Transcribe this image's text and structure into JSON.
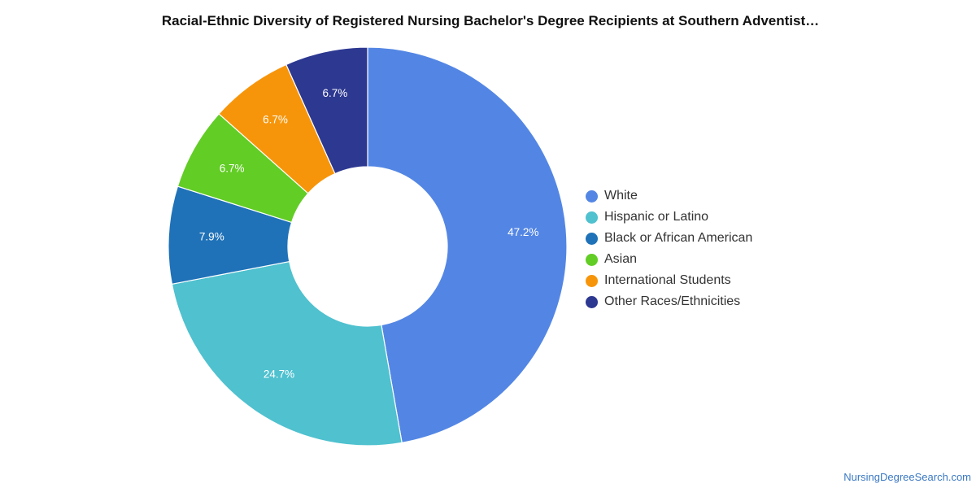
{
  "chart_data": {
    "type": "pie",
    "donut": true,
    "title": "Racial-Ethnic Diversity of Registered Nursing Bachelor's Degree Recipients at Southern Adventist…",
    "legend_position": "right",
    "slices": [
      {
        "label": "White",
        "value": 47.2,
        "display": "47.2%",
        "color": "#5386e4"
      },
      {
        "label": "Hispanic or Latino",
        "value": 24.7,
        "display": "24.7%",
        "color": "#4fc1cf"
      },
      {
        "label": "Black or African American",
        "value": 7.9,
        "display": "7.9%",
        "color": "#1f72b8"
      },
      {
        "label": "Asian",
        "value": 6.7,
        "display": "6.7%",
        "color": "#62cd25"
      },
      {
        "label": "International Students",
        "value": 6.7,
        "display": "6.7%",
        "color": "#f7950a"
      },
      {
        "label": "Other Races/Ethnicities",
        "value": 6.7,
        "display": "6.7%",
        "color": "#2d3891"
      }
    ]
  },
  "credit": "NursingDegreeSearch.com"
}
